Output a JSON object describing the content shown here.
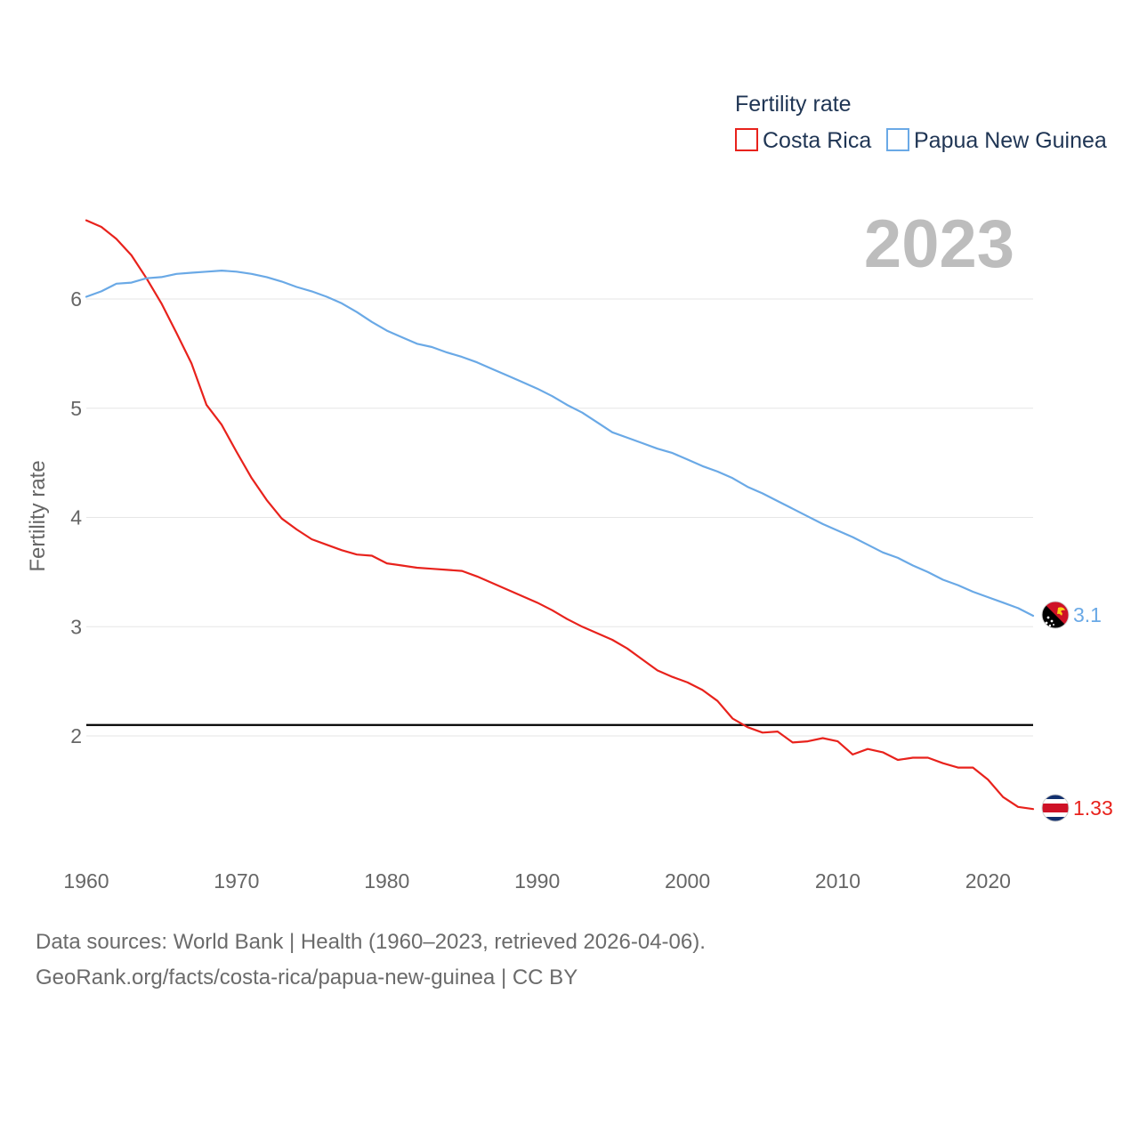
{
  "chart_data": {
    "type": "line",
    "legend_title": "Fertility rate",
    "ylabel": "Fertility rate",
    "year_label": "2023",
    "ylim": [
      1.0,
      6.8
    ],
    "xlim": [
      1960,
      2023
    ],
    "x_ticks": [
      1960,
      1970,
      1980,
      1990,
      2000,
      2010,
      2020
    ],
    "y_ticks": [
      2,
      3,
      4,
      5,
      6
    ],
    "reference_line": 2.1,
    "x": [
      1960,
      1961,
      1962,
      1963,
      1964,
      1965,
      1966,
      1967,
      1968,
      1969,
      1970,
      1971,
      1972,
      1973,
      1974,
      1975,
      1976,
      1977,
      1978,
      1979,
      1980,
      1981,
      1982,
      1983,
      1984,
      1985,
      1986,
      1987,
      1988,
      1989,
      1990,
      1991,
      1992,
      1993,
      1994,
      1995,
      1996,
      1997,
      1998,
      1999,
      2000,
      2001,
      2002,
      2003,
      2004,
      2005,
      2006,
      2007,
      2008,
      2009,
      2010,
      2011,
      2012,
      2013,
      2014,
      2015,
      2016,
      2017,
      2018,
      2019,
      2020,
      2021,
      2022,
      2023
    ],
    "series": [
      {
        "name": "Costa Rica",
        "color": "#e8221c",
        "end_label": "1.33",
        "values": [
          6.72,
          6.66,
          6.55,
          6.4,
          6.19,
          5.96,
          5.69,
          5.41,
          5.03,
          4.85,
          4.6,
          4.36,
          4.16,
          3.99,
          3.89,
          3.8,
          3.75,
          3.7,
          3.66,
          3.65,
          3.58,
          3.56,
          3.54,
          3.53,
          3.52,
          3.51,
          3.46,
          3.4,
          3.34,
          3.28,
          3.22,
          3.15,
          3.07,
          3.0,
          2.94,
          2.88,
          2.8,
          2.7,
          2.6,
          2.54,
          2.49,
          2.42,
          2.32,
          2.16,
          2.08,
          2.03,
          2.04,
          1.94,
          1.95,
          1.98,
          1.95,
          1.83,
          1.88,
          1.85,
          1.78,
          1.8,
          1.8,
          1.75,
          1.71,
          1.71,
          1.6,
          1.44,
          1.35,
          1.33
        ]
      },
      {
        "name": "Papua New Guinea",
        "color": "#6aa9e6",
        "end_label": "3.1",
        "values": [
          6.02,
          6.07,
          6.14,
          6.15,
          6.19,
          6.2,
          6.23,
          6.24,
          6.25,
          6.26,
          6.25,
          6.23,
          6.2,
          6.16,
          6.11,
          6.07,
          6.02,
          5.96,
          5.88,
          5.79,
          5.71,
          5.65,
          5.59,
          5.56,
          5.51,
          5.47,
          5.42,
          5.36,
          5.3,
          5.24,
          5.18,
          5.11,
          5.03,
          4.96,
          4.87,
          4.78,
          4.73,
          4.68,
          4.63,
          4.59,
          4.53,
          4.47,
          4.42,
          4.36,
          4.28,
          4.22,
          4.15,
          4.08,
          4.01,
          3.94,
          3.88,
          3.82,
          3.75,
          3.68,
          3.63,
          3.56,
          3.5,
          3.43,
          3.38,
          3.32,
          3.27,
          3.22,
          3.17,
          3.1
        ]
      }
    ]
  },
  "footer": {
    "source_line": "Data sources: World Bank | Health (1960–2023, retrieved 2026-04-06).",
    "credit_line": "GeoRank.org/facts/costa-rica/papua-new-guinea | CC BY"
  },
  "flags": {
    "costa_rica": {
      "blue": "#12306e",
      "white": "#ffffff",
      "red": "#ce1126"
    },
    "papua_new_guinea": {
      "black": "#000000",
      "red": "#ce1126",
      "gold": "#fcd116"
    }
  }
}
